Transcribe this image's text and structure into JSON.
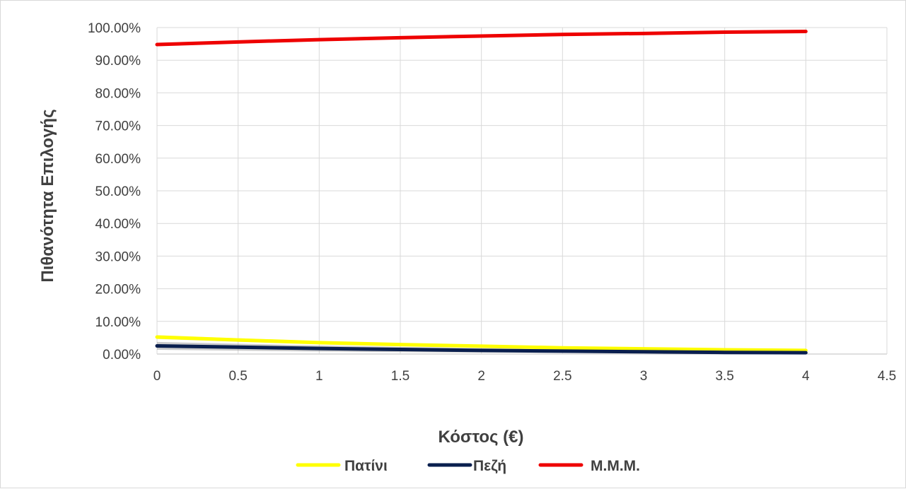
{
  "chart_data": {
    "type": "line",
    "title": "",
    "xlabel": "Κόστος (€)",
    "ylabel": "Πιθανότητα Επιλογής",
    "xlim": [
      0,
      4.5
    ],
    "ylim": [
      0,
      1
    ],
    "x_ticks": [
      "0",
      "0.5",
      "1",
      "1.5",
      "2",
      "2.5",
      "3",
      "3.5",
      "4",
      "4.5"
    ],
    "y_ticks": [
      "0.00%",
      "10.00%",
      "20.00%",
      "30.00%",
      "40.00%",
      "50.00%",
      "60.00%",
      "70.00%",
      "80.00%",
      "90.00%",
      "100.00%"
    ],
    "grid": true,
    "legend_position": "bottom",
    "series": [
      {
        "name": "Πατίνι",
        "color": "#FFFF00",
        "x": [
          0,
          0.5,
          1,
          1.5,
          2,
          2.5,
          3,
          3.5,
          4
        ],
        "y": [
          0.052,
          0.043,
          0.035,
          0.029,
          0.024,
          0.019,
          0.016,
          0.013,
          0.011
        ]
      },
      {
        "name": "Πεζή",
        "color": "#0A1F4E",
        "x": [
          0,
          0.5,
          1,
          1.5,
          2,
          2.5,
          3,
          3.5,
          4
        ],
        "y": [
          0.025,
          0.021,
          0.017,
          0.014,
          0.011,
          0.009,
          0.007,
          0.005,
          0.004
        ]
      },
      {
        "name": "Μ.Μ.Μ.",
        "color": "#EE0000",
        "x": [
          0,
          0.5,
          1,
          1.5,
          2,
          2.5,
          3,
          3.5,
          4
        ],
        "y": [
          0.948,
          0.956,
          0.963,
          0.969,
          0.974,
          0.979,
          0.982,
          0.986,
          0.988
        ]
      }
    ]
  }
}
